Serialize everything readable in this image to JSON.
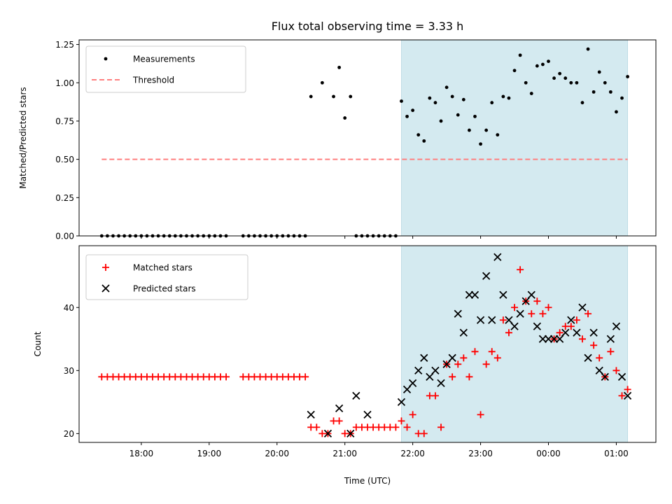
{
  "chart_data": [
    {
      "type": "scatter",
      "title": "Flux total observing time = 3.33 h",
      "ylabel": "Matched/Predicted stars",
      "xlabel": "",
      "ylim": [
        0,
        1.28
      ],
      "yticks": [
        0.0,
        0.25,
        0.5,
        0.75,
        1.0,
        1.25
      ],
      "ytick_labels": [
        "0.00",
        "0.25",
        "0.50",
        "0.75",
        "1.00",
        "1.25"
      ],
      "shaded_region": {
        "x": [
          "21:50",
          "01:10"
        ],
        "color": "#d4eaf0"
      },
      "legend": {
        "placement": "top-left",
        "entries": [
          {
            "label": "Measurements",
            "marker": "dot",
            "color": "#000000"
          },
          {
            "label": "Threshold",
            "marker": "dashed-line",
            "color": "#ff8080"
          }
        ]
      },
      "threshold": {
        "name": "Threshold",
        "y": 0.5,
        "x": [
          "17:25",
          "01:10"
        ],
        "color": "#ff8080"
      },
      "series": [
        {
          "name": "Measurements",
          "marker": "dot",
          "color": "#000000",
          "x": [
            "17:25",
            "17:30",
            "17:35",
            "17:40",
            "17:45",
            "17:50",
            "17:55",
            "18:00",
            "18:05",
            "18:10",
            "18:15",
            "18:20",
            "18:25",
            "18:30",
            "18:35",
            "18:40",
            "18:45",
            "18:50",
            "18:55",
            "19:00",
            "19:05",
            "19:10",
            "19:15",
            "19:30",
            "19:35",
            "19:40",
            "19:45",
            "19:50",
            "19:55",
            "20:00",
            "20:05",
            "20:10",
            "20:15",
            "20:20",
            "20:25",
            "20:30",
            "20:40",
            "20:50",
            "20:55",
            "21:00",
            "21:05",
            "21:10",
            "21:15",
            "21:20",
            "21:25",
            "21:30",
            "21:35",
            "21:40",
            "21:45",
            "21:50",
            "21:55",
            "22:00",
            "22:05",
            "22:10",
            "22:15",
            "22:20",
            "22:25",
            "22:30",
            "22:35",
            "22:40",
            "22:45",
            "22:50",
            "22:55",
            "23:00",
            "23:05",
            "23:10",
            "23:15",
            "23:20",
            "23:25",
            "23:30",
            "23:35",
            "23:40",
            "23:45",
            "23:50",
            "23:55",
            "00:00",
            "00:05",
            "00:10",
            "00:15",
            "00:20",
            "00:25",
            "00:30",
            "00:35",
            "00:40",
            "00:45",
            "00:50",
            "00:55",
            "01:00",
            "01:05",
            "01:10"
          ],
          "y": [
            0,
            0,
            0,
            0,
            0,
            0,
            0,
            0,
            0,
            0,
            0,
            0,
            0,
            0,
            0,
            0,
            0,
            0,
            0,
            0,
            0,
            0,
            0,
            0,
            0,
            0,
            0,
            0,
            0,
            0,
            0,
            0,
            0,
            0,
            0,
            0.91,
            1.0,
            0.91,
            1.1,
            0.77,
            0.91,
            0,
            0,
            0,
            0,
            0,
            0,
            0,
            0,
            0.88,
            0.78,
            0.82,
            0.66,
            0.62,
            0.9,
            0.87,
            0.75,
            0.97,
            0.91,
            0.79,
            0.89,
            0.69,
            0.78,
            0.6,
            0.69,
            0.87,
            0.66,
            0.91,
            0.9,
            1.08,
            1.18,
            1.0,
            0.93,
            1.11,
            1.12,
            1.14,
            1.03,
            1.06,
            1.03,
            1.0,
            1.0,
            0.87,
            1.22,
            0.94,
            1.07,
            1.0,
            0.94,
            0.81,
            0.9,
            1.04
          ]
        }
      ]
    },
    {
      "type": "scatter",
      "title": "",
      "ylabel": "Count",
      "xlabel": "Time (UTC)",
      "ylim": [
        18.6,
        49.8
      ],
      "yticks": [
        20,
        30,
        40
      ],
      "ytick_labels": [
        "20",
        "30",
        "40"
      ],
      "xlim": [
        "17:05",
        "01:35"
      ],
      "xticks": [
        "18:00",
        "19:00",
        "20:00",
        "21:00",
        "22:00",
        "23:00",
        "00:00",
        "01:00"
      ],
      "shaded_region": {
        "x": [
          "21:50",
          "01:10"
        ],
        "color": "#d4eaf0"
      },
      "legend": {
        "placement": "top-left",
        "entries": [
          {
            "label": "Matched stars",
            "marker": "plus",
            "color": "#ff0000"
          },
          {
            "label": "Predicted stars",
            "marker": "x",
            "color": "#000000"
          }
        ]
      },
      "series": [
        {
          "name": "Matched stars",
          "marker": "plus",
          "color": "#ff0000",
          "x": [
            "17:25",
            "17:30",
            "17:35",
            "17:40",
            "17:45",
            "17:50",
            "17:55",
            "18:00",
            "18:05",
            "18:10",
            "18:15",
            "18:20",
            "18:25",
            "18:30",
            "18:35",
            "18:40",
            "18:45",
            "18:50",
            "18:55",
            "19:00",
            "19:05",
            "19:10",
            "19:15",
            "19:30",
            "19:35",
            "19:40",
            "19:45",
            "19:50",
            "19:55",
            "20:00",
            "20:05",
            "20:10",
            "20:15",
            "20:20",
            "20:25",
            "20:30",
            "20:35",
            "20:40",
            "20:45",
            "20:50",
            "20:55",
            "21:00",
            "21:05",
            "21:10",
            "21:15",
            "21:20",
            "21:25",
            "21:30",
            "21:35",
            "21:40",
            "21:45",
            "21:50",
            "21:55",
            "22:00",
            "22:05",
            "22:10",
            "22:15",
            "22:20",
            "22:25",
            "22:30",
            "22:35",
            "22:40",
            "22:45",
            "22:50",
            "22:55",
            "23:00",
            "23:05",
            "23:10",
            "23:15",
            "23:20",
            "23:25",
            "23:30",
            "23:35",
            "23:40",
            "23:45",
            "23:50",
            "23:55",
            "00:00",
            "00:05",
            "00:10",
            "00:15",
            "00:20",
            "00:25",
            "00:30",
            "00:35",
            "00:40",
            "00:45",
            "00:50",
            "00:55",
            "01:00",
            "01:05",
            "01:10"
          ],
          "y": [
            29,
            29,
            29,
            29,
            29,
            29,
            29,
            29,
            29,
            29,
            29,
            29,
            29,
            29,
            29,
            29,
            29,
            29,
            29,
            29,
            29,
            29,
            29,
            29,
            29,
            29,
            29,
            29,
            29,
            29,
            29,
            29,
            29,
            29,
            29,
            21,
            21,
            20,
            20,
            22,
            22,
            20,
            20,
            21,
            21,
            21,
            21,
            21,
            21,
            21,
            21,
            22,
            21,
            23,
            20,
            20,
            26,
            26,
            21,
            31,
            29,
            31,
            32,
            29,
            33,
            23,
            31,
            33,
            32,
            38,
            36,
            40,
            46,
            41,
            39,
            41,
            39,
            40,
            35,
            36,
            37,
            37,
            38,
            35,
            39,
            34,
            32,
            29,
            33,
            30,
            26,
            27
          ]
        },
        {
          "name": "Predicted stars",
          "marker": "x",
          "color": "#000000",
          "x": [
            "20:30",
            "20:45",
            "20:55",
            "21:05",
            "21:10",
            "21:20",
            "21:50",
            "21:55",
            "22:00",
            "22:05",
            "22:10",
            "22:15",
            "22:20",
            "22:25",
            "22:30",
            "22:35",
            "22:40",
            "22:45",
            "22:50",
            "22:55",
            "23:00",
            "23:05",
            "23:10",
            "23:15",
            "23:20",
            "23:25",
            "23:30",
            "23:35",
            "23:40",
            "23:45",
            "23:50",
            "23:55",
            "00:00",
            "00:05",
            "00:10",
            "00:15",
            "00:20",
            "00:25",
            "00:30",
            "00:35",
            "00:40",
            "00:45",
            "00:50",
            "00:55",
            "01:00",
            "01:05",
            "01:10"
          ],
          "y": [
            23,
            20,
            24,
            20,
            26,
            23,
            25,
            27,
            28,
            30,
            32,
            29,
            30,
            28,
            31,
            32,
            39,
            36,
            42,
            42,
            38,
            45,
            38,
            48,
            42,
            38,
            37,
            39,
            41,
            42,
            37,
            35,
            35,
            35,
            35,
            36,
            38,
            36,
            40,
            32,
            36,
            30,
            29,
            35,
            37,
            29,
            26
          ]
        }
      ]
    }
  ]
}
